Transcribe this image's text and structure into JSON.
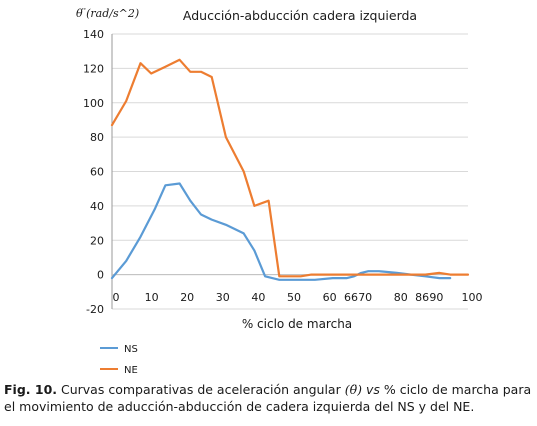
{
  "colors": {
    "ns": "#5b9bd5",
    "ne": "#ed7d31",
    "grid": "#d9d9d9",
    "axis": "#9a9a9a"
  },
  "chart_data": {
    "type": "line",
    "title": "Aducción-abducción cadera izquierda",
    "ylabel": "θ ̈(rad/s^2)",
    "xlabel": "% ciclo de marcha",
    "ylim": [
      -20,
      140
    ],
    "yticks": [
      -20,
      0,
      20,
      40,
      60,
      80,
      100,
      120,
      140
    ],
    "xticks": [
      0,
      10,
      20,
      30,
      40,
      50,
      60,
      66,
      70,
      80,
      86,
      90,
      100
    ],
    "grid": "horizontal",
    "legend_position": "bottom-left",
    "series": [
      {
        "name": "NS",
        "x": [
          0,
          4,
          8,
          12,
          15,
          19,
          22,
          25,
          28,
          32,
          37,
          40,
          43,
          47,
          50,
          53,
          57,
          62,
          66,
          68,
          70,
          72,
          75,
          80,
          84,
          88,
          92,
          95
        ],
        "y": [
          -2,
          8,
          22,
          38,
          52,
          53,
          43,
          35,
          32,
          29,
          24,
          14,
          -1,
          -3,
          -3,
          -3,
          -3,
          -2,
          -2,
          -1,
          1,
          2,
          2,
          1,
          0,
          -1,
          -2,
          -2
        ]
      },
      {
        "name": "NE",
        "x": [
          0,
          4,
          8,
          11,
          15,
          19,
          22,
          25,
          28,
          32,
          37,
          40,
          44,
          47,
          50,
          53,
          56,
          58,
          60,
          62,
          64,
          66,
          68,
          70,
          73,
          77,
          80,
          84,
          88,
          92,
          95,
          100
        ],
        "y": [
          87,
          101,
          123,
          117,
          121,
          125,
          118,
          118,
          115,
          80,
          60,
          40,
          43,
          -1,
          -1,
          -1,
          0,
          0,
          0,
          0,
          0,
          0,
          0,
          0,
          0,
          0,
          0,
          0,
          0,
          1,
          0,
          0
        ]
      }
    ]
  },
  "caption": {
    "fig_label": "Fig. 10.",
    "part1": " Curvas comparativas de aceleración angular ",
    "symbol": "(θ̈)",
    "part2": " ",
    "vs": "vs",
    "part3": " % ciclo de marcha para el movimiento de aducción-abducción de cadera izquierda del NS y del NE."
  }
}
